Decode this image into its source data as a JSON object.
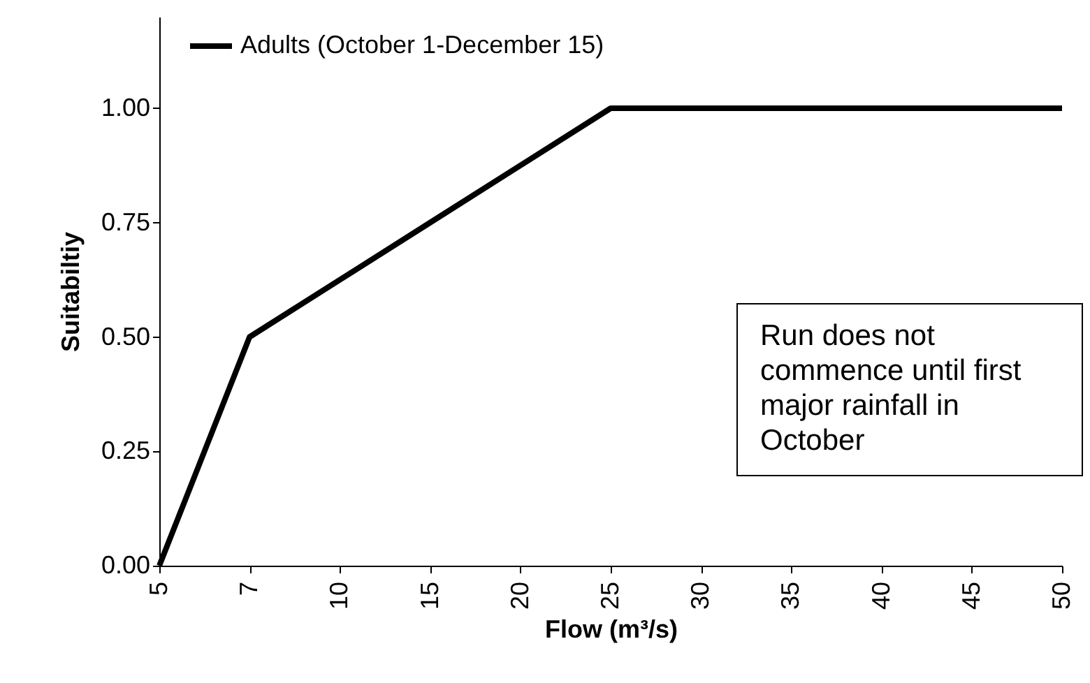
{
  "chart_data": {
    "type": "line",
    "xlabel": "Flow (m³/s)",
    "ylabel": "Suitabiltiy",
    "categories": [
      "5",
      "7",
      "10",
      "15",
      "20",
      "25",
      "30",
      "35",
      "40",
      "45",
      "50"
    ],
    "series": [
      {
        "name": "Adults (October 1-December 15)",
        "color": "#000000",
        "values": [
          0,
          0.5,
          0.625,
          0.75,
          0.875,
          1,
          1,
          1,
          1,
          1,
          1
        ]
      }
    ],
    "ylim": [
      0,
      1.2
    ],
    "yticks": [
      {
        "value": 0,
        "label": "0.00"
      },
      {
        "value": 0.25,
        "label": "0.25"
      },
      {
        "value": 0.5,
        "label": "0.50"
      },
      {
        "value": 0.75,
        "label": "0.75"
      },
      {
        "value": 1,
        "label": "1.00"
      }
    ],
    "grid": false,
    "legend": "top left",
    "annotations": [
      "Run does not commence until first major rainfall in October"
    ]
  }
}
